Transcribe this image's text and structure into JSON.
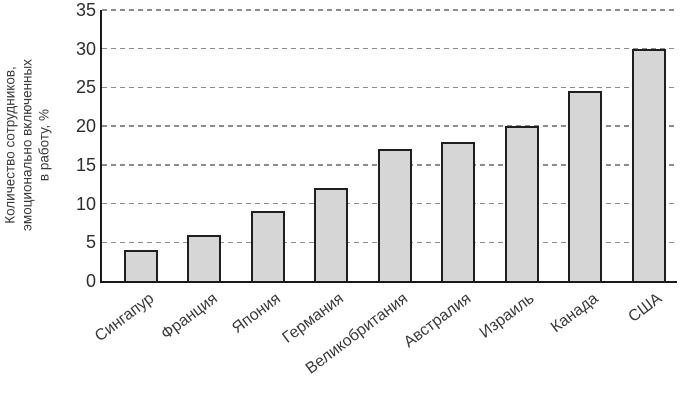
{
  "chart_data": {
    "type": "bar",
    "title": "",
    "xlabel": "",
    "ylabel": "Количество сотрудников, эмоционально включенных в работу, %",
    "ylabel_lines": [
      "Количество сотрудников,",
      "эмоционально включенных",
      "в работу, %"
    ],
    "categories": [
      "Сингапур",
      "Франция",
      "Япония",
      "Германия",
      "Великобритания",
      "Австралия",
      "Израиль",
      "Канада",
      "США"
    ],
    "values": [
      4,
      6,
      9,
      12,
      17,
      18,
      20,
      24.5,
      30
    ],
    "ylim": [
      0,
      35
    ],
    "yticks": [
      0,
      5,
      10,
      15,
      20,
      25,
      30,
      35
    ],
    "grid": "horizontal-dashed",
    "legend": "none",
    "colors": {
      "bar_fill": "#d6d6d6",
      "bar_border": "#1f1f1f",
      "grid_color": "#8c8c8c",
      "axis_color": "#1a1a1a",
      "text_color": "#3a3a3a",
      "background": "#ffffff"
    }
  }
}
